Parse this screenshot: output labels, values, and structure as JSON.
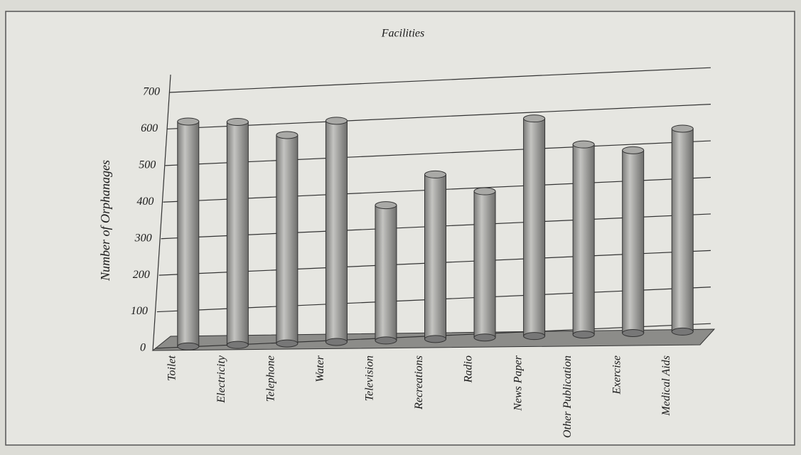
{
  "chart_data": {
    "type": "bar",
    "title": "Facilities",
    "y_label": "Number of Orphanages",
    "categories": [
      "Toilet",
      "Electricity",
      "Telephone",
      "Water",
      "Television",
      "Recreations",
      "Radio",
      "News Paper",
      "Other Publication",
      "Exercise",
      "Medical Aids"
    ],
    "values": [
      615,
      610,
      570,
      605,
      370,
      450,
      400,
      595,
      520,
      500,
      555
    ],
    "color": "#a9a9a6",
    "ylim": [
      0,
      700
    ],
    "yticks": [
      0,
      100,
      200,
      300,
      400,
      500,
      600,
      700
    ],
    "grid": true
  }
}
